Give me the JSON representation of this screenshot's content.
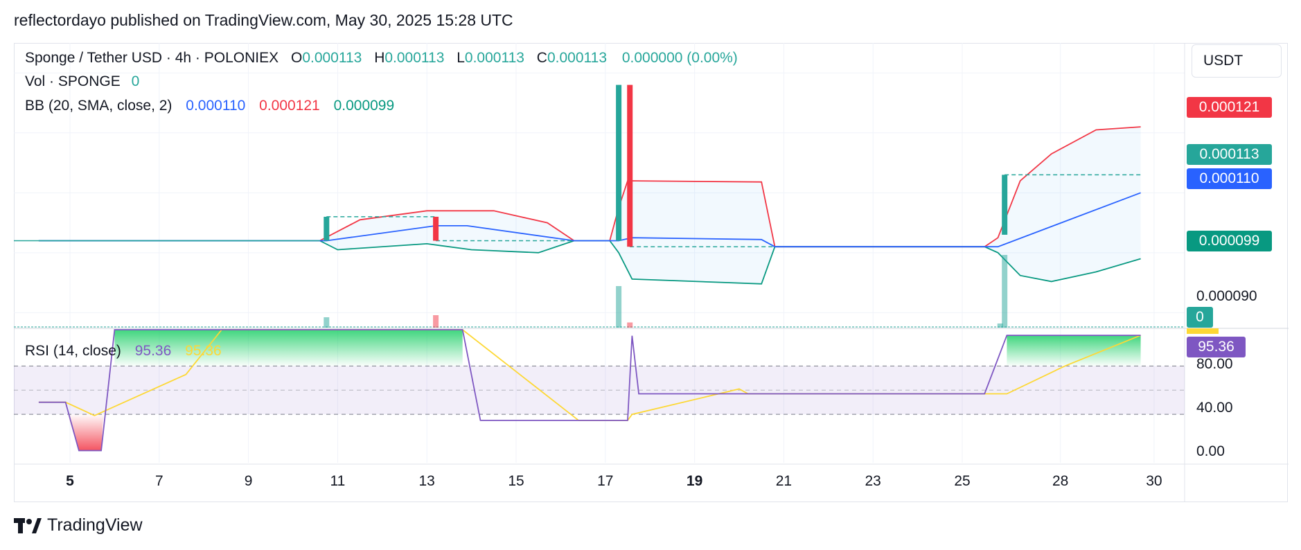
{
  "header": {
    "title": "reflectordayo published on TradingView.com, May 30, 2025 15:28 UTC"
  },
  "legend": {
    "symbol": "Sponge / Tether USD · 4h · POLONIEX",
    "o_label": "O",
    "o_value": "0.000113",
    "h_label": "H",
    "h_value": "0.000113",
    "l_label": "L",
    "l_value": "0.000113",
    "c_label": "C",
    "c_value": "0.000113",
    "change": "0.000000 (0.00%)",
    "vol_label": "Vol · SPONGE",
    "vol_value": "0",
    "bb_label": "BB (20, SMA, close, 2)",
    "bb_basis": "0.000110",
    "bb_upper": "0.000121",
    "bb_lower": "0.000099",
    "rsi_label": "RSI (14, close)",
    "rsi_value": "95.36",
    "rsi_ma_value": "95.36"
  },
  "price_axis": {
    "currency": "USDT",
    "tags": {
      "upper": "0.000121",
      "last": "0.000113",
      "basis": "0.000110",
      "lower": "0.000099",
      "volume": "0",
      "rsi": "95.36"
    },
    "tick_label": "0.000090"
  },
  "rsi_axis": {
    "ticks": [
      "80.00",
      "40.00",
      "0.00"
    ]
  },
  "time_axis": {
    "ticks": [
      "5",
      "7",
      "9",
      "11",
      "13",
      "15",
      "17",
      "19",
      "21",
      "23",
      "25",
      "28",
      "30"
    ],
    "bold_ticks": [
      "5",
      "19"
    ]
  },
  "colors": {
    "up": "#26a69a",
    "down": "#f23645",
    "basis": "#2962ff",
    "upper": "#f23645",
    "lower": "#089981",
    "rsi": "#7e57c2",
    "rsi_ma": "#fdd835"
  },
  "footer": {
    "brand": "TradingView"
  },
  "chart_data": {
    "type": "candlestick",
    "x_unit": "day of May 2025",
    "price_range": [
      8.75e-05,
      0.000135
    ],
    "candles": [
      {
        "x": 10.75,
        "o": 0.000102,
        "h": 0.000106,
        "l": 0.000102,
        "c": 0.000106
      },
      {
        "x": 13.2,
        "o": 0.000106,
        "h": 0.000106,
        "l": 0.000102,
        "c": 0.000102
      },
      {
        "x": 17.3,
        "o": 0.000102,
        "h": 0.000128,
        "l": 0.000102,
        "c": 0.000128
      },
      {
        "x": 17.55,
        "o": 0.000128,
        "h": 0.000128,
        "l": 0.000101,
        "c": 0.000101
      },
      {
        "x": 25.95,
        "o": 0.000103,
        "h": 0.000113,
        "l": 0.000103,
        "c": 0.000113
      }
    ],
    "volume": [
      {
        "x": 10.75,
        "v": 0.1,
        "dir": "up"
      },
      {
        "x": 13.2,
        "v": 0.12,
        "dir": "down"
      },
      {
        "x": 17.3,
        "v": 0.4,
        "dir": "up"
      },
      {
        "x": 17.55,
        "v": 0.05,
        "dir": "down"
      },
      {
        "x": 25.85,
        "v": 0.04,
        "dir": "up"
      },
      {
        "x": 25.95,
        "v": 0.7,
        "dir": "up"
      }
    ],
    "bb_basis": [
      [
        4.3,
        0.000102
      ],
      [
        10.6,
        0.000102
      ],
      [
        10.75,
        0.000102
      ],
      [
        13.2,
        0.0001045
      ],
      [
        13.9,
        0.0001045
      ],
      [
        16.3,
        0.000102
      ],
      [
        17.1,
        0.000102
      ],
      [
        17.3,
        0.000102
      ],
      [
        17.6,
        0.0001025
      ],
      [
        20.5,
        0.0001022
      ],
      [
        20.8,
        0.000101
      ],
      [
        25.5,
        0.000101
      ],
      [
        25.8,
        0.000101
      ],
      [
        29.0,
        0.00011
      ]
    ],
    "bb_upper": [
      [
        4.3,
        0.000102
      ],
      [
        10.6,
        0.000102
      ],
      [
        11.5,
        0.0001055
      ],
      [
        13.0,
        0.000107
      ],
      [
        14.5,
        0.000107
      ],
      [
        15.7,
        0.000105
      ],
      [
        16.3,
        0.000102
      ],
      [
        17.1,
        0.000102
      ],
      [
        17.3,
        0.0001075
      ],
      [
        17.5,
        0.000112
      ],
      [
        20.5,
        0.0001118
      ],
      [
        20.8,
        0.000101
      ],
      [
        25.5,
        0.000101
      ],
      [
        25.8,
        0.0001025
      ],
      [
        26.3,
        0.000112
      ],
      [
        27.0,
        0.0001165
      ],
      [
        28.0,
        0.0001205
      ],
      [
        29.0,
        0.000121
      ]
    ],
    "bb_lower": [
      [
        4.3,
        0.000102
      ],
      [
        10.6,
        0.000102
      ],
      [
        11.0,
        0.0001005
      ],
      [
        13.0,
        0.0001015
      ],
      [
        14.0,
        0.0001005
      ],
      [
        15.5,
        0.0001
      ],
      [
        16.3,
        0.000102
      ],
      [
        17.1,
        0.000102
      ],
      [
        17.3,
        0.0001
      ],
      [
        17.6,
        9.56e-05
      ],
      [
        20.5,
        9.48e-05
      ],
      [
        20.8,
        0.000101
      ],
      [
        25.5,
        0.000101
      ],
      [
        25.8,
        0.0001
      ],
      [
        26.3,
        9.62e-05
      ],
      [
        27.0,
        9.52e-05
      ],
      [
        28.0,
        9.68e-05
      ],
      [
        29.0,
        9.9e-05
      ]
    ],
    "rsi_range": [
      -10,
      100
    ],
    "rsi": [
      [
        4.3,
        40
      ],
      [
        4.9,
        40
      ],
      [
        5.2,
        0
      ],
      [
        5.7,
        0
      ],
      [
        6.0,
        100
      ],
      [
        13.8,
        100
      ],
      [
        14.2,
        25
      ],
      [
        17.5,
        25
      ],
      [
        17.6,
        95
      ],
      [
        17.75,
        47
      ],
      [
        25.5,
        47
      ],
      [
        26.0,
        95.36
      ],
      [
        29.0,
        95.36
      ]
    ],
    "rsi_ma": [
      [
        4.3,
        40
      ],
      [
        4.9,
        40
      ],
      [
        5.55,
        29
      ],
      [
        7.6,
        63
      ],
      [
        8.4,
        100
      ],
      [
        13.8,
        100
      ],
      [
        16.4,
        25
      ],
      [
        17.5,
        25
      ],
      [
        17.6,
        30
      ],
      [
        20.0,
        51
      ],
      [
        20.2,
        47
      ],
      [
        26.0,
        47
      ],
      [
        27.3,
        70
      ],
      [
        29.0,
        95.36
      ]
    ],
    "rsi_bands": {
      "upper": 70,
      "middle": 50,
      "lower": 30
    }
  }
}
